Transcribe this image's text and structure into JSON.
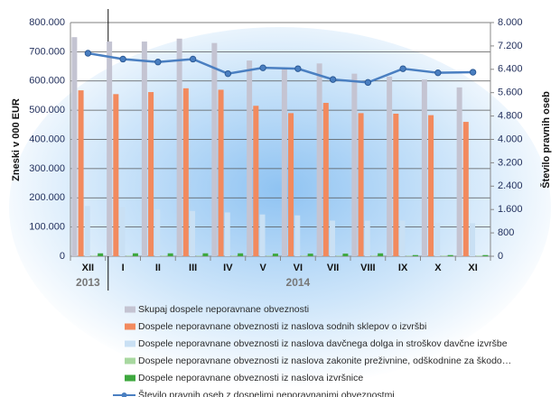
{
  "chart_data": {
    "type": "bar",
    "y_label": "Zneski v 000  EUR",
    "y2_label": "Število pravnih oseb",
    "categories": [
      "XII",
      "I",
      "II",
      "III",
      "IV",
      "V",
      "VI",
      "VII",
      "VIII",
      "IX",
      "X",
      "XI"
    ],
    "category_groups": [
      {
        "label": "2013",
        "size": 1
      },
      {
        "label": "2014",
        "size": 11
      }
    ],
    "ylim": [
      0,
      800000
    ],
    "yticks": [
      0,
      {
        "value": 100000,
        "label": "100.000"
      },
      {
        "value": 200000,
        "label": "200.000"
      },
      {
        "value": 300000,
        "label": "300.000"
      },
      {
        "value": 400000,
        "label": "400.000"
      },
      {
        "value": 500000,
        "label": "500.000"
      },
      {
        "value": 600000,
        "label": "600.000"
      },
      {
        "value": 700000,
        "label": "700.000"
      },
      {
        "value": 800000,
        "label": "800.000"
      }
    ],
    "y2lim": [
      0,
      8000
    ],
    "y2ticks": [
      0,
      800,
      {
        "value": 1600,
        "label": "1.600"
      },
      {
        "value": 2400,
        "label": "2.400"
      },
      {
        "value": 3200,
        "label": "3.200"
      },
      {
        "value": 4000,
        "label": "4.000"
      },
      {
        "value": 4800,
        "label": "4.800"
      },
      {
        "value": 5600,
        "label": "5.600"
      },
      {
        "value": 6400,
        "label": "6.400"
      },
      {
        "value": 7200,
        "label": "7.200"
      },
      {
        "value": 8000,
        "label": "8.000"
      }
    ],
    "grid": true,
    "legend": "bottom",
    "series": [
      {
        "name": "Skupaj dospele neporavnane obveznosti",
        "color": "#c4c4d2",
        "values": [
          750000,
          735000,
          735000,
          745000,
          730000,
          670000,
          640000,
          660000,
          625000,
          615000,
          605000,
          578000
        ]
      },
      {
        "name": "Dospele neporavnane obveznosti iz naslova sodnih sklepov o izvršbi",
        "color": "#f28a5e",
        "values": [
          568000,
          555000,
          562000,
          575000,
          570000,
          515000,
          490000,
          525000,
          490000,
          488000,
          483000,
          460000
        ]
      },
      {
        "name": "Dospele neporavnane obveznosti iz naslova davčnega dolga in stroškov davčne izvršbe",
        "color": "#c9e0f4",
        "values": [
          172000,
          168000,
          160000,
          155000,
          150000,
          143000,
          140000,
          122000,
          122000,
          122000,
          115000,
          113000
        ]
      },
      {
        "name": "Dospele neporavnane obveznosti iz naslova zakonite preživnine, odškodnine za škodo…",
        "color": "#a8d8a0",
        "values": [
          2000,
          2000,
          2000,
          2000,
          2000,
          2000,
          2000,
          2000,
          2000,
          2000,
          2000,
          2000
        ]
      },
      {
        "name": "Dospele neporavnane obveznosti iz naslova izvršnice",
        "color": "#3ea83e",
        "values": [
          10000,
          10000,
          10000,
          10000,
          10000,
          9000,
          9000,
          9000,
          10000,
          4000,
          4000,
          4000
        ]
      },
      {
        "name": "Število pravnih oseb z dospelimi neporavnanimi obveznostmi",
        "color": "#4a7fc1",
        "type": "line",
        "axis": "y2",
        "values": [
          6950,
          6750,
          6650,
          6750,
          6250,
          6450,
          6420,
          6050,
          5950,
          6420,
          6280,
          6300
        ]
      }
    ]
  }
}
